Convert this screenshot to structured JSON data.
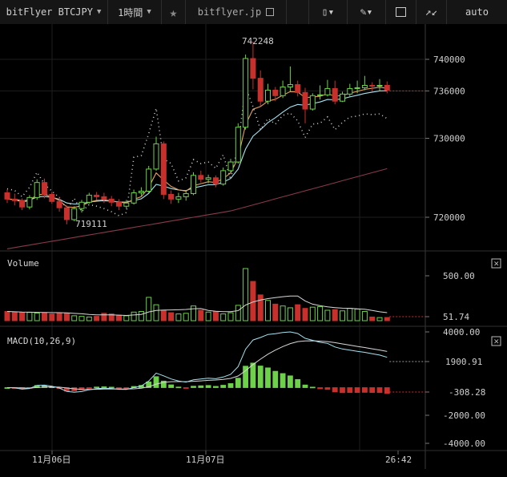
{
  "toolbar": {
    "symbol": "bitFlyer BTCJPY",
    "interval": "1時間",
    "site": "bitflyer.jp",
    "scale_mode": "auto",
    "icons": [
      "chevron-down-icon",
      "star-icon",
      "external-link-icon",
      "candle-type-icon",
      "draw-pencil-icon",
      "indicator-icon",
      "fullscreen-icon"
    ]
  },
  "chart_data": [
    {
      "type": "candlestick",
      "panel": "price",
      "y_axis_labels": [
        "740000",
        "736000",
        "730000",
        "720000"
      ],
      "y_ticks": [
        740000,
        736000,
        730000,
        720000
      ],
      "high_label": "742248",
      "low_label": "719111",
      "candles": [
        [
          723100,
          723500,
          721800,
          722300
        ],
        [
          722300,
          723000,
          721500,
          722100
        ],
        [
          722100,
          722400,
          720900,
          721300
        ],
        [
          721300,
          722800,
          721000,
          722500
        ],
        [
          722500,
          724800,
          722200,
          724400
        ],
        [
          724400,
          724900,
          722400,
          722900
        ],
        [
          722900,
          723200,
          721700,
          722000
        ],
        [
          722000,
          722600,
          720700,
          721200
        ],
        [
          721200,
          721500,
          719111,
          719700
        ],
        [
          719700,
          721400,
          719500,
          721100
        ],
        [
          721100,
          722200,
          720600,
          721900
        ],
        [
          721900,
          723100,
          721700,
          722800
        ],
        [
          722800,
          723200,
          722200,
          722600
        ],
        [
          722600,
          723100,
          721800,
          722300
        ],
        [
          722300,
          722700,
          721400,
          721900
        ],
        [
          721900,
          722300,
          720900,
          721400
        ],
        [
          721400,
          722200,
          721100,
          721800
        ],
        [
          721800,
          723500,
          721600,
          723100
        ],
        [
          723100,
          723800,
          722700,
          723300
        ],
        [
          723300,
          726500,
          723100,
          726100
        ],
        [
          726100,
          730200,
          725900,
          729300
        ],
        [
          729300,
          729600,
          722300,
          722900
        ],
        [
          722900,
          723400,
          721700,
          722300
        ],
        [
          722300,
          723100,
          721800,
          722600
        ],
        [
          722600,
          723300,
          722100,
          723000
        ],
        [
          723000,
          725700,
          722800,
          725300
        ],
        [
          725300,
          725900,
          724400,
          724800
        ],
        [
          724800,
          725400,
          724300,
          725000
        ],
        [
          725000,
          725300,
          723800,
          724200
        ],
        [
          724200,
          726300,
          724000,
          725900
        ],
        [
          725900,
          727400,
          725600,
          727000
        ],
        [
          727000,
          731900,
          726800,
          731400
        ],
        [
          731400,
          740600,
          731100,
          740100
        ],
        [
          740100,
          742248,
          736200,
          737600
        ],
        [
          737600,
          738600,
          734100,
          734700
        ],
        [
          734700,
          736900,
          734300,
          736100
        ],
        [
          736100,
          736500,
          734700,
          735400
        ],
        [
          735400,
          737300,
          735100,
          736500
        ],
        [
          736500,
          739100,
          735900,
          736800
        ],
        [
          736800,
          737300,
          735300,
          735800
        ],
        [
          735800,
          736400,
          731900,
          733700
        ],
        [
          733700,
          735700,
          733500,
          735400
        ],
        [
          735400,
          736700,
          734900,
          735500
        ],
        [
          735500,
          737400,
          735300,
          736300
        ],
        [
          736300,
          737300,
          734300,
          734700
        ],
        [
          734700,
          735900,
          734600,
          735600
        ],
        [
          735600,
          736900,
          735300,
          736300
        ],
        [
          736300,
          737300,
          735700,
          736400
        ],
        [
          736400,
          737900,
          736100,
          736700
        ],
        [
          736700,
          737100,
          735900,
          736600
        ],
        [
          736600,
          737500,
          736000,
          736700
        ],
        [
          736700,
          737200,
          735700,
          736100
        ]
      ],
      "current_price_line": 736000
    },
    {
      "type": "bar",
      "panel": "volume",
      "title": "Volume",
      "y_axis_labels": [
        "500.00",
        "51.74"
      ],
      "y_ticks": [
        500,
        51.74
      ],
      "values": [
        150,
        140,
        130,
        135,
        125,
        130,
        110,
        125,
        120,
        80,
        70,
        60,
        70,
        120,
        110,
        90,
        80,
        140,
        150,
        380,
        260,
        170,
        130,
        110,
        120,
        240,
        170,
        140,
        150,
        110,
        130,
        250,
        850,
        640,
        420,
        330,
        270,
        240,
        210,
        260,
        200,
        220,
        230,
        170,
        180,
        160,
        200,
        190,
        150,
        60,
        50,
        51.74
      ],
      "last_value": 51.74
    },
    {
      "type": "macd",
      "panel": "macd",
      "title": "MACD(10,26,9)",
      "y_axis_labels": [
        "4000.00",
        "1900.91",
        "-308.28",
        "-2000.00",
        "-4000.00"
      ],
      "y_ticks": [
        4000,
        1900.91,
        -308.28,
        -2000,
        -4000
      ],
      "macd_last": 1900.91,
      "hist_last": -308.28
    }
  ],
  "x_axis_labels": [
    "11月06日",
    "11月07日",
    "26:42"
  ]
}
